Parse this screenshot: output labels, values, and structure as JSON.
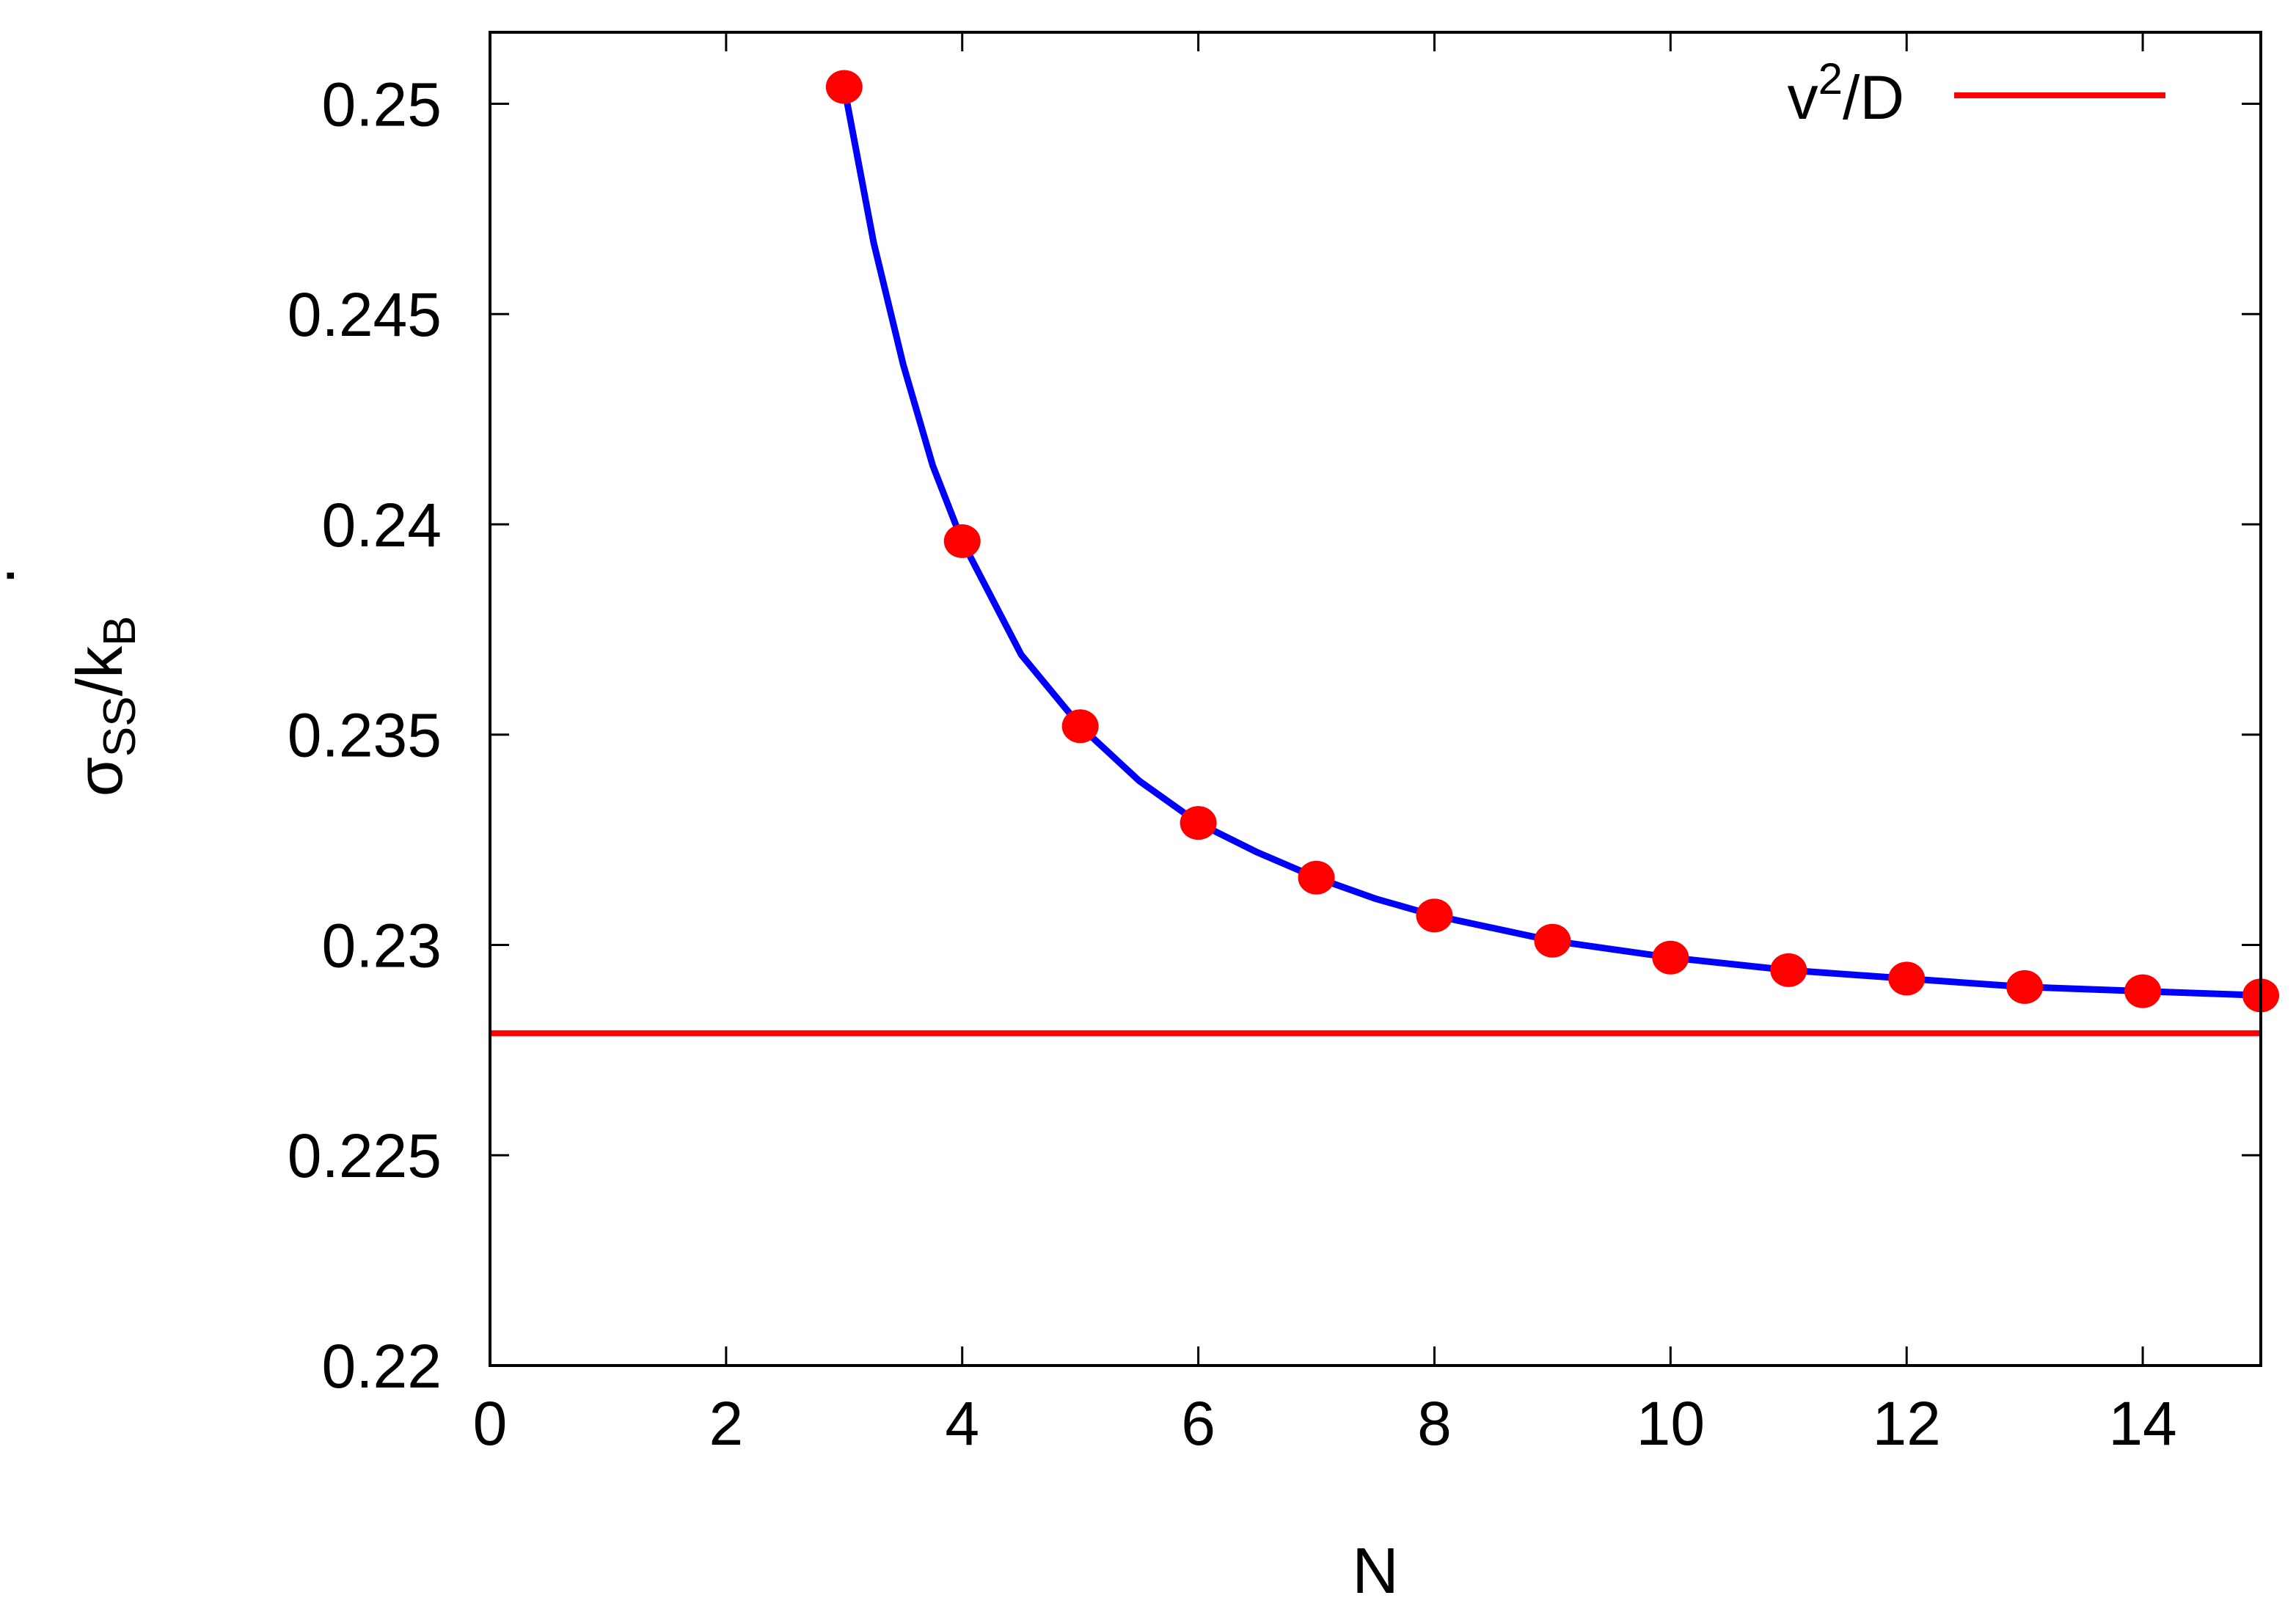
{
  "chart_data": {
    "type": "line",
    "xlabel": "N",
    "ylabel": {
      "main": "σ",
      "main_sub": "SS",
      "slash": "/k",
      "slash_sub": "B",
      "dot": "·"
    },
    "xlim": [
      0,
      15
    ],
    "ylim": [
      0.22,
      0.2517
    ],
    "x_ticks": [
      0,
      2,
      4,
      6,
      8,
      10,
      12,
      14
    ],
    "x_tick_labels": [
      "0",
      "2",
      "4",
      "6",
      "8",
      "10",
      "12",
      "14"
    ],
    "y_ticks": [
      0.22,
      0.225,
      0.23,
      0.235,
      0.24,
      0.245,
      0.25
    ],
    "y_tick_labels": [
      "0.22",
      "0.225",
      "0.23",
      "0.235",
      "0.24",
      "0.245",
      "0.25"
    ],
    "grid": false,
    "legend": {
      "placement": "top-right",
      "entries": [
        {
          "main": "v",
          "sup": "2",
          "rest": "/D",
          "color": "#ff0000"
        }
      ]
    },
    "series": [
      {
        "kind": "points",
        "color": "#ff0000",
        "x": [
          3,
          4,
          5,
          6,
          7,
          8,
          9,
          10,
          11,
          12,
          13,
          14,
          15
        ],
        "y": [
          0.2504,
          0.2396,
          0.2352,
          0.2329,
          0.2316,
          0.2307,
          0.2301,
          0.2297,
          0.2294,
          0.2292,
          0.229,
          0.2289,
          0.2288
        ]
      },
      {
        "kind": "curve",
        "color": "#0000ff",
        "x": [
          3,
          3.25,
          3.5,
          3.75,
          4,
          4.5,
          5,
          5.5,
          6,
          6.5,
          7,
          7.5,
          8,
          9,
          10,
          11,
          12,
          13,
          14,
          15
        ],
        "y": [
          0.2504,
          0.2467,
          0.2438,
          0.2414,
          0.2396,
          0.2369,
          0.2352,
          0.2339,
          0.2329,
          0.2322,
          0.2316,
          0.2311,
          0.2307,
          0.2301,
          0.2297,
          0.2294,
          0.2292,
          0.229,
          0.2289,
          0.2288
        ]
      },
      {
        "kind": "hline",
        "color": "#ff0000",
        "y": 0.2279
      }
    ]
  }
}
